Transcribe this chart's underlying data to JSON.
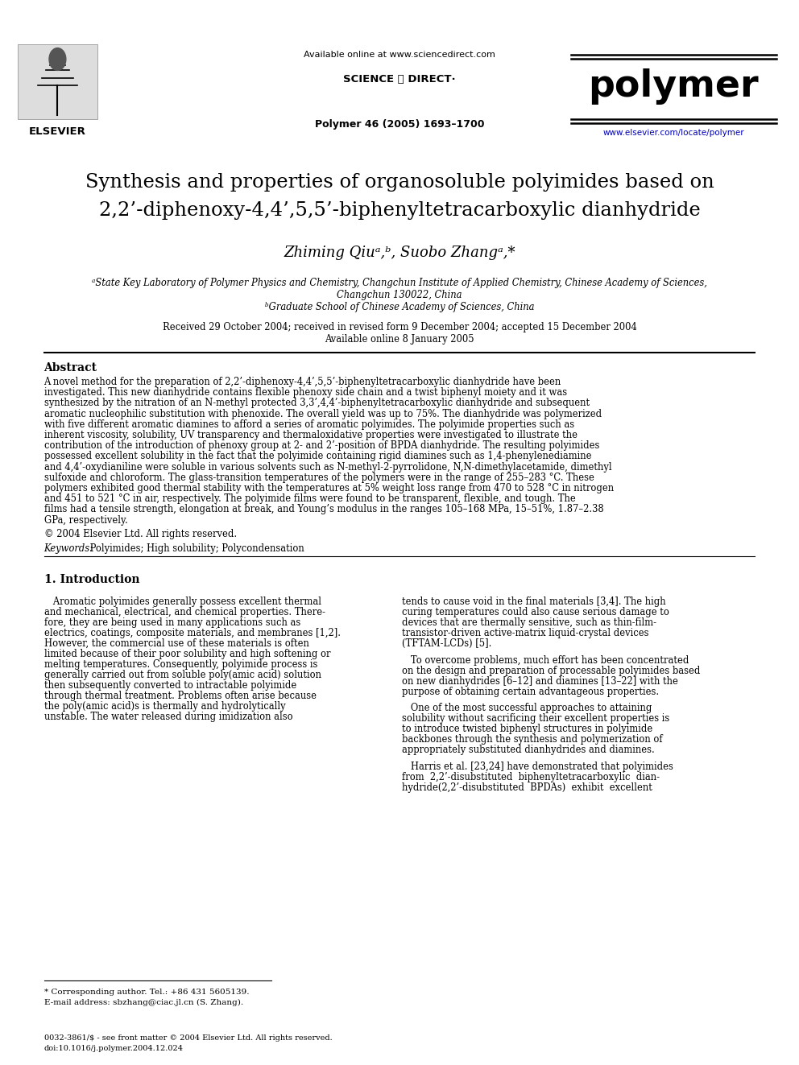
{
  "page_width": 9.92,
  "page_height": 13.23,
  "bg_color": "#ffffff",
  "available_online": "Available online at www.sciencedirect.com",
  "sciencedirect_text": "SCIENCE ⓓ DIRECT·",
  "journal_name": "polymer",
  "journal_info": "Polymer 46 (2005) 1693–1700",
  "journal_url": "www.elsevier.com/locate/polymer",
  "elsevier_text": "ELSEVIER",
  "title_line1": "Synthesis and properties of organosoluble polyimides based on",
  "title_line2": "2,2’-diphenoxy-4,4’,5,5’-biphenyltetracarboxylic dianhydride",
  "author_line": "Zhiming Qiuᵃ,ᵇ, Suobo Zhangᵃ,*",
  "affiliation1": "ᵃState Key Laboratory of Polymer Physics and Chemistry, Changchun Institute of Applied Chemistry, Chinese Academy of Sciences,",
  "affiliation1b": "Changchun 130022, China",
  "affiliation2": "ᵇGraduate School of Chinese Academy of Sciences, China",
  "received": "Received 29 October 2004; received in revised form 9 December 2004; accepted 15 December 2004",
  "available": "Available online 8 January 2005",
  "abstract_title": "Abstract",
  "abstract_text": "   A novel method for the preparation of 2,2’-diphenoxy-4,4’,5,5’-biphenyltetracarboxylic dianhydride have been investigated. This new dianhydride contains flexible phenoxy side chain and a twist biphenyl moiety and it was synthesized by the nitration of an N-methyl protected 3,3’,4,4’-biphenyltetracarboxylic dianhydride and subsequent aromatic nucleophilic substitution with phenoxide. The overall yield was up to 75%. The dianhydride was polymerized with five different aromatic diamines to afford a series of aromatic polyimides. The polyimide properties such as inherent viscosity, solubility, UV transparency and thermaloxidative properties were investigated to illustrate the contribution of the introduction of phenoxy group at 2- and 2’-position of BPDA dianhydride. The resulting polyimides possessed excellent solubility in the fact that the polyimide containing rigid diamines such as 1,4-phenylenediamine and 4,4’-oxydianiline were soluble in various solvents such as N-methyl-2-pyrrolidone, N,N-dimethylacetamide, dimethyl sulfoxide and chloroform. The glass-transition temperatures of the polymers were in the range of 255–283 °C. These polymers exhibited good thermal stability with the temperatures at 5% weight loss range from 470 to 528 °C in nitrogen and 451 to 521 °C in air, respectively. The polyimide films were found to be transparent, flexible, and tough. The films had a tensile strength, elongation at break, and Young’s modulus in the ranges 105–168 MPa, 15–51%, 1.87–2.38 GPa, respectively.",
  "copyright": "© 2004 Elsevier Ltd. All rights reserved.",
  "keywords_label": "Keywords:",
  "keywords_text": " Polyimides; High solubility; Polycondensation",
  "section1_title": "1. Introduction",
  "intro_left_lines": [
    "   Aromatic polyimides generally possess excellent thermal",
    "and mechanical, electrical, and chemical properties. There-",
    "fore, they are being used in many applications such as",
    "electrics, coatings, composite materials, and membranes [1,2].",
    "However, the commercial use of these materials is often",
    "limited because of their poor solubility and high softening or",
    "melting temperatures. Consequently, polyimide process is",
    "generally carried out from soluble poly(amic acid) solution",
    "then subsequently converted to intractable polyimide",
    "through thermal treatment. Problems often arise because",
    "the poly(amic acid)s is thermally and hydrolytically",
    "unstable. The water released during imidization also"
  ],
  "intro_right_para1": [
    "tends to cause void in the final materials [3,4]. The high",
    "curing temperatures could also cause serious damage to",
    "devices that are thermally sensitive, such as thin-film-",
    "transistor-driven active-matrix liquid-crystal devices",
    "(TFTAM-LCDs) [5]."
  ],
  "intro_right_para2": [
    "   To overcome problems, much effort has been concentrated",
    "on the design and preparation of processable polyimides based",
    "on new dianhydrides [6–12] and diamines [13–22] with the",
    "purpose of obtaining certain advantageous properties."
  ],
  "intro_right_para3": [
    "   One of the most successful approaches to attaining",
    "solubility without sacrificing their excellent properties is",
    "to introduce twisted biphenyl structures in polyimide",
    "backbones through the synthesis and polymerization of",
    "appropriately substituted dianhydrides and diamines."
  ],
  "intro_right_para4": [
    "   Harris et al. [23,24] have demonstrated that polyimides",
    "from  2,2’-disubstituted  biphenyltetracarboxylic  dian-",
    "hydride(2,2’-disubstituted  BPDAs)  exhibit  excellent"
  ],
  "footnote_star": "* Corresponding author. Tel.: +86 431 5605139.",
  "footnote_email": "E-mail address: sbzhang@ciac.jl.cn (S. Zhang).",
  "footer_issn": "0032-3861/$ - see front matter © 2004 Elsevier Ltd. All rights reserved.",
  "footer_doi": "doi:10.1016/j.polymer.2004.12.024"
}
